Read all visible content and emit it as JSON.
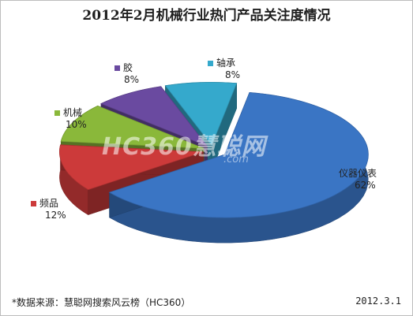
{
  "chart_data": {
    "type": "pie",
    "title": "2012年2月机械行业热门产品关注度情况",
    "slices": [
      {
        "label": "仪器仪表",
        "value": 62,
        "pct_text": "62%",
        "color": "#3a75c4"
      },
      {
        "label": "频品",
        "value": 12,
        "pct_text": "12%",
        "color": "#cc3a3a"
      },
      {
        "label": "机械",
        "value": 10,
        "pct_text": "10%",
        "color": "#8ab83a"
      },
      {
        "label": "胶",
        "value": 8,
        "pct_text": "8%",
        "color": "#6a4aa0"
      },
      {
        "label": "轴承",
        "value": 8,
        "pct_text": "8%",
        "color": "#35a9cc"
      }
    ],
    "legend": "inline-labels",
    "three_d": true
  },
  "watermark": {
    "text": "HC360慧聪网",
    "sub": ".com"
  },
  "footer": {
    "source": "*数据来源：慧聪网搜索风云榜（HC360）",
    "date": "2012.3.1"
  }
}
